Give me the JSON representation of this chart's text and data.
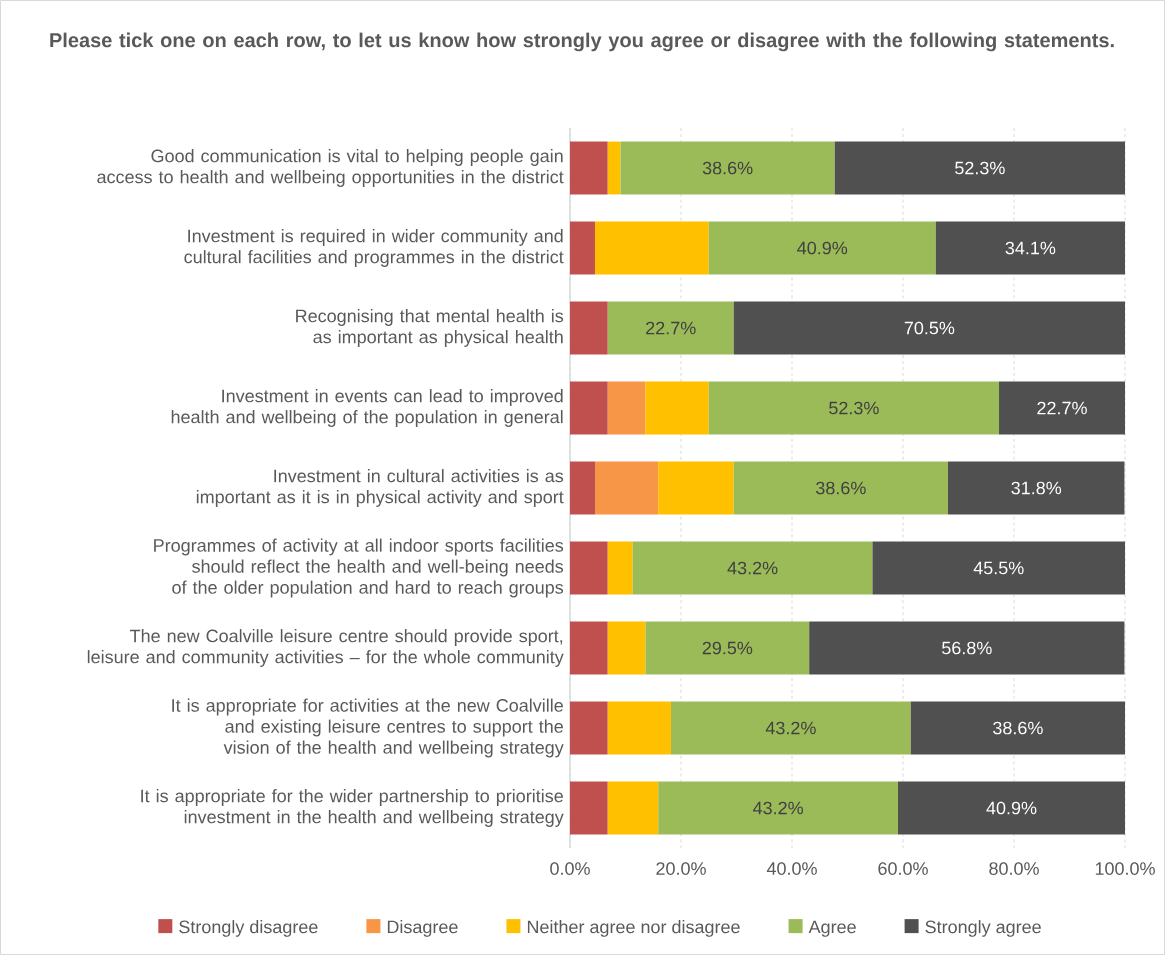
{
  "chart_data": {
    "type": "bar",
    "orientation": "horizontal",
    "stacked": true,
    "title": "Please tick one on each row, to let us know how strongly you agree or disagree with the following statements.",
    "categories": [
      "Good communication is vital to helping people gain access to health and wellbeing opportunities in the district",
      "Investment is required in wider community and cultural facilities and programmes in the district",
      "Recognising that mental health is as important as physical health",
      "Investment in events can lead to improved health and wellbeing of the population in general",
      "Investment in cultural activities is as important as it is in physical activity and sport",
      "Programmes of activity at all indoor sports facilities should reflect the health and well-being needs of the older population and hard to reach groups",
      "The new Coalville leisure centre should provide sport, leisure and community activities – for the whole community",
      "It is appropriate for activities at the new Coalville and existing leisure centres to support the vision of the health and wellbeing strategy",
      "It is appropriate for the wider partnership to prioritise investment in the health and wellbeing strategy"
    ],
    "series": [
      {
        "name": "Strongly disagree",
        "color": "#c0504d",
        "values": [
          6.8,
          4.5,
          6.8,
          6.8,
          4.5,
          6.8,
          6.8,
          6.8,
          6.8
        ]
      },
      {
        "name": "Disagree",
        "color": "#f79646",
        "values": [
          null,
          null,
          null,
          6.8,
          11.4,
          null,
          null,
          null,
          null
        ]
      },
      {
        "name": "Neither agree nor disagree",
        "color": "#ffc000",
        "values": [
          2.3,
          20.5,
          null,
          11.4,
          13.6,
          4.5,
          6.8,
          11.4,
          9.1
        ]
      },
      {
        "name": "Agree",
        "color": "#9bbb59",
        "values": [
          38.6,
          40.9,
          22.7,
          52.3,
          38.6,
          43.2,
          29.5,
          43.2,
          43.2
        ],
        "value_labels": [
          "38.6%",
          "40.9%",
          "22.7%",
          "52.3%",
          "38.6%",
          "43.2%",
          "29.5%",
          "43.2%",
          "43.2%"
        ]
      },
      {
        "name": "Strongly agree",
        "color": "#505050",
        "values": [
          52.3,
          34.1,
          70.5,
          22.7,
          31.8,
          45.5,
          56.8,
          38.6,
          40.9
        ],
        "value_labels": [
          "52.3%",
          "34.1%",
          "70.5%",
          "22.7%",
          "31.8%",
          "45.5%",
          "56.8%",
          "38.6%",
          "40.9%"
        ]
      }
    ],
    "xlim": [
      0,
      100
    ],
    "xticks": [
      {
        "value": 0,
        "label": "0.0%"
      },
      {
        "value": 20,
        "label": "20.0%"
      },
      {
        "value": 40,
        "label": "40.0%"
      },
      {
        "value": 60,
        "label": "60.0%"
      },
      {
        "value": 80,
        "label": "80.0%"
      },
      {
        "value": 100,
        "label": "100.0%"
      }
    ],
    "grid": "x",
    "legend": "bottom"
  }
}
